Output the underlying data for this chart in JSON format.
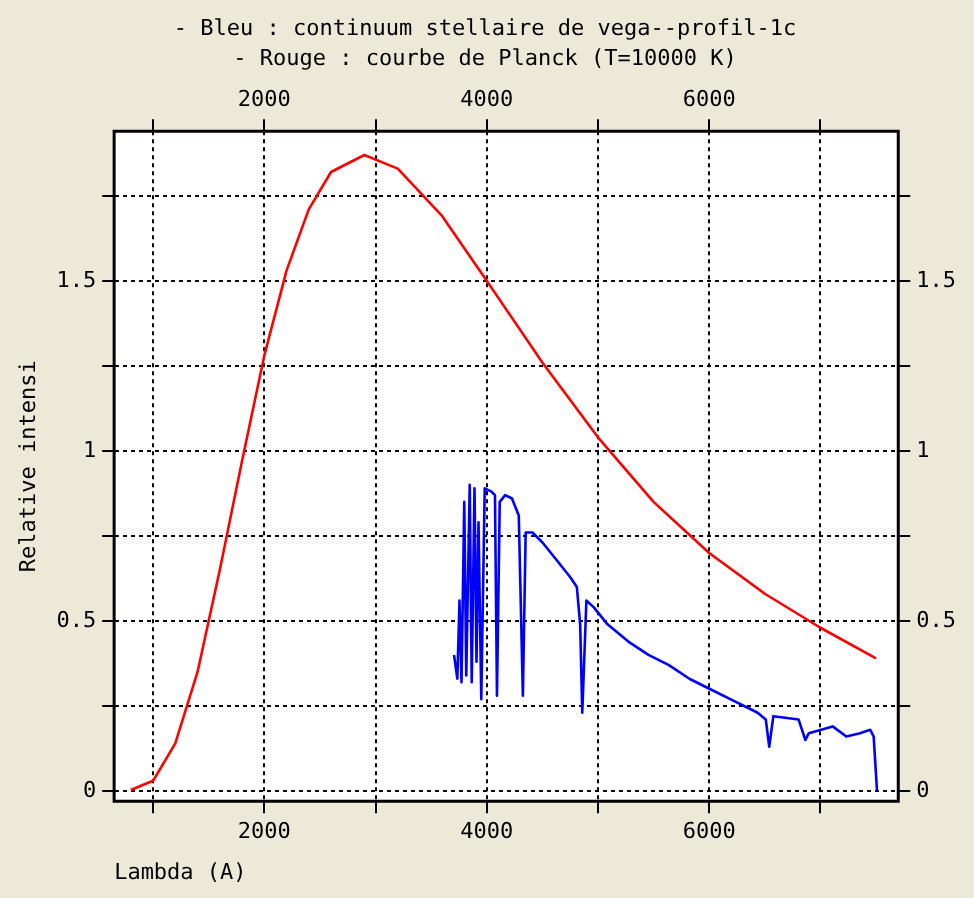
{
  "chart_data": {
    "type": "line",
    "title": "- Bleu : continuum stellaire de vega--profil-1c",
    "subtitle": "- Rouge : courbe de Planck (T=10000 K)",
    "xlabel": "Lambda (A)",
    "ylabel": "Relative intensi",
    "xlim": [
      650,
      7700
    ],
    "xticks": [
      {
        "value": 1000,
        "label": null
      },
      2000,
      {
        "value": 3000,
        "label": null
      },
      4000,
      {
        "value": 5000,
        "label": null
      },
      6000,
      {
        "value": 7000,
        "label": null
      }
    ],
    "x2lim": [
      650,
      7700
    ],
    "x2ticks": [
      {
        "value": 1000,
        "label": null
      },
      2000,
      {
        "value": 3000,
        "label": null
      },
      4000,
      {
        "value": 5000,
        "label": null
      },
      6000,
      {
        "value": 7000,
        "label": null
      }
    ],
    "ylim": [
      -0.03,
      1.94
    ],
    "yticks": [
      0,
      {
        "value": 0.25,
        "label": null
      },
      0.5,
      {
        "value": 0.75,
        "label": null
      },
      1,
      {
        "value": 1.25,
        "label": null
      },
      1.5,
      {
        "value": 1.75,
        "label": null
      }
    ],
    "y2lim": [
      -0.03,
      1.94
    ],
    "y2ticks": [
      0,
      {
        "value": 0.25,
        "label": null
      },
      0.5,
      {
        "value": 0.75,
        "label": null
      },
      1,
      {
        "value": 1.25,
        "label": null
      },
      1.5,
      {
        "value": 1.75,
        "label": null
      }
    ],
    "grid": true,
    "legend": false,
    "marker": "none",
    "line_style": "solid",
    "series": [
      {
        "color": "#ff0000",
        "x": [
          800,
          1000,
          1200,
          1400,
          1600,
          1800,
          2000,
          2200,
          2400,
          2600,
          2900,
          3200,
          3600,
          4000,
          4500,
          5000,
          5500,
          6000,
          6500,
          7000,
          7500
        ],
        "values": [
          0.003,
          0.03,
          0.14,
          0.35,
          0.65,
          0.97,
          1.28,
          1.53,
          1.71,
          1.82,
          1.87,
          1.83,
          1.69,
          1.5,
          1.26,
          1.04,
          0.85,
          0.7,
          0.58,
          0.48,
          0.39
        ]
      },
      {
        "color": "#0000ff",
        "x": [
          3706,
          3736,
          3755,
          3773,
          3798,
          3816,
          3847,
          3865,
          3890,
          3908,
          3926,
          3951,
          3982,
          4043,
          4074,
          4092,
          4117,
          4166,
          4227,
          4288,
          4325,
          4350,
          4411,
          4503,
          4626,
          4748,
          4810,
          4840,
          4859,
          4896,
          4963,
          5086,
          5270,
          5454,
          5638,
          5822,
          6006,
          6190,
          6436,
          6509,
          6540,
          6577,
          6804,
          6865,
          6896,
          7110,
          7233,
          7356,
          7448,
          7479,
          7509
        ],
        "values": [
          0.4,
          0.33,
          0.56,
          0.32,
          0.85,
          0.34,
          0.9,
          0.32,
          0.89,
          0.38,
          0.79,
          0.27,
          0.89,
          0.88,
          0.87,
          0.28,
          0.85,
          0.87,
          0.86,
          0.81,
          0.28,
          0.76,
          0.76,
          0.73,
          0.68,
          0.63,
          0.6,
          0.49,
          0.23,
          0.56,
          0.54,
          0.49,
          0.44,
          0.4,
          0.37,
          0.33,
          0.3,
          0.27,
          0.23,
          0.21,
          0.13,
          0.22,
          0.21,
          0.15,
          0.17,
          0.19,
          0.16,
          0.17,
          0.18,
          0.16,
          0
        ]
      }
    ]
  }
}
